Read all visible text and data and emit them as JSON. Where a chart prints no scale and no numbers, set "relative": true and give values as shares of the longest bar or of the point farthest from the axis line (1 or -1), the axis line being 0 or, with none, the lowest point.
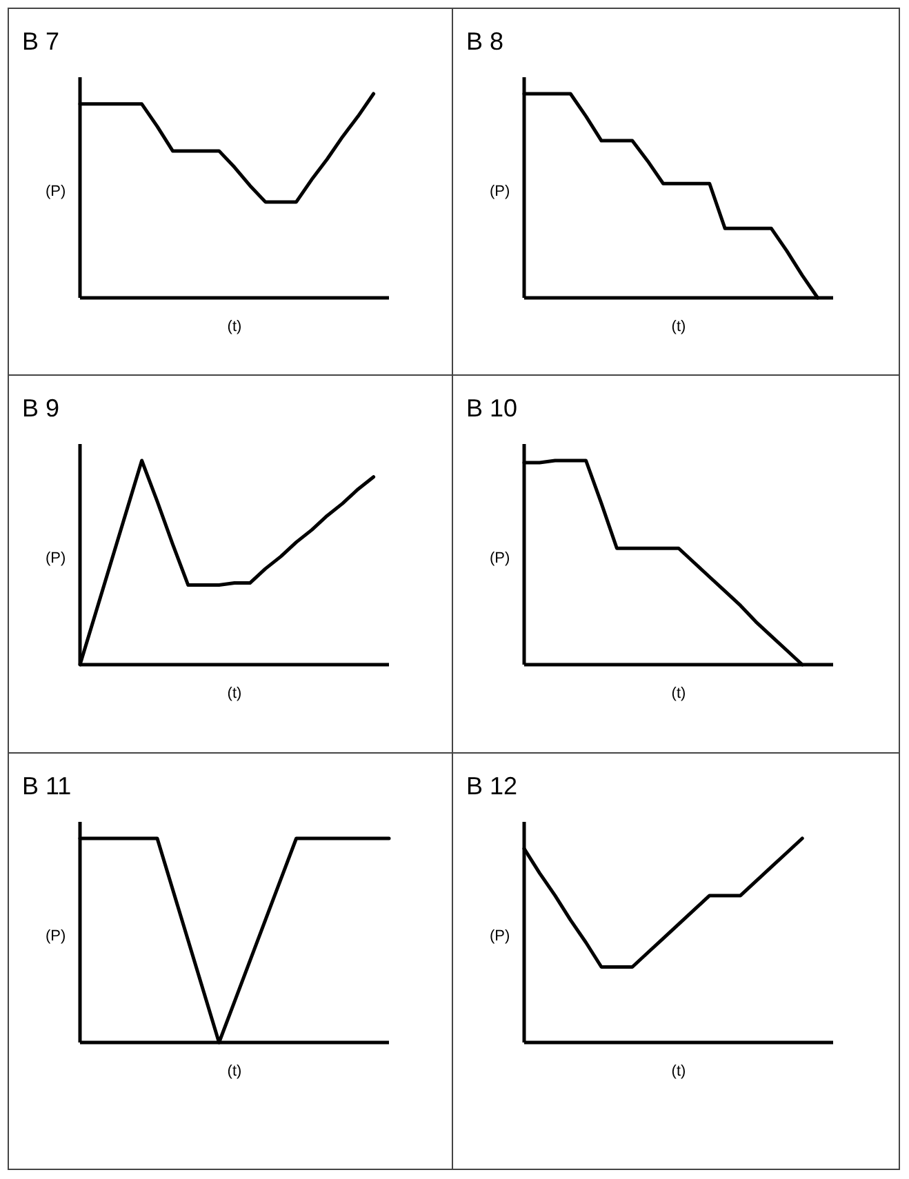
{
  "chart_data": [
    {
      "type": "line",
      "title": "B 7",
      "xlabel": "(t)",
      "ylabel": "(P)",
      "relative": true,
      "color": "#000000",
      "categories": [
        null,
        null,
        null,
        null,
        null,
        null,
        null,
        null,
        null,
        null,
        null,
        null,
        null,
        null,
        null,
        null,
        null,
        null,
        null,
        null,
        null
      ],
      "values": [
        0.95,
        0.95,
        0.95,
        0.95,
        0.95,
        0.84,
        0.72,
        0.72,
        0.72,
        0.72,
        0.64,
        0.55,
        0.47,
        0.47,
        0.47,
        0.58,
        0.68,
        0.79,
        0.89,
        1,
        null
      ]
    },
    {
      "type": "line",
      "title": "B 8",
      "xlabel": "(t)",
      "ylabel": "(P)",
      "relative": true,
      "color": "#000000",
      "categories": [
        null,
        null,
        null,
        null,
        null,
        null,
        null,
        null,
        null,
        null,
        null,
        null,
        null,
        null,
        null,
        null,
        null,
        null,
        null,
        null,
        null
      ],
      "values": [
        1,
        1,
        1,
        1,
        0.89,
        0.77,
        0.77,
        0.77,
        0.67,
        0.56,
        0.56,
        0.56,
        0.56,
        0.34,
        0.34,
        0.34,
        0.34,
        0.23,
        0.11,
        0,
        null
      ]
    },
    {
      "type": "line",
      "title": "B 9",
      "xlabel": "(t)",
      "ylabel": "(P)",
      "relative": true,
      "color": "#000000",
      "categories": [
        null,
        null,
        null,
        null,
        null,
        null,
        null,
        null,
        null,
        null,
        null,
        null,
        null,
        null,
        null,
        null,
        null,
        null,
        null,
        null,
        null
      ],
      "values": [
        0,
        0.25,
        0.5,
        0.75,
        1,
        0.8,
        0.59,
        0.39,
        0.39,
        0.39,
        0.4,
        0.4,
        0.47,
        0.53,
        0.6,
        0.66,
        0.73,
        0.79,
        0.86,
        0.92,
        null
      ]
    },
    {
      "type": "line",
      "title": "B 10",
      "xlabel": "(t)",
      "ylabel": "(P)",
      "relative": true,
      "color": "#000000",
      "categories": [
        null,
        null,
        null,
        null,
        null,
        null,
        null,
        null,
        null,
        null,
        null,
        null,
        null,
        null,
        null,
        null,
        null,
        null,
        null,
        null,
        null
      ],
      "values": [
        0.99,
        0.99,
        1,
        1,
        1,
        0.79,
        0.57,
        0.57,
        0.57,
        0.57,
        0.57,
        0.5,
        0.43,
        0.36,
        0.29,
        0.21,
        0.14,
        0.07,
        0,
        null,
        null
      ]
    },
    {
      "type": "line",
      "title": "B 11",
      "xlabel": "(t)",
      "ylabel": "(P)",
      "relative": true,
      "color": "#000000",
      "categories": [
        null,
        null,
        null,
        null,
        null,
        null,
        null,
        null,
        null,
        null,
        null,
        null,
        null,
        null,
        null,
        null,
        null,
        null,
        null,
        null,
        null
      ],
      "values": [
        1,
        1,
        1,
        1,
        1,
        1,
        0.75,
        0.5,
        0.25,
        0,
        0.2,
        0.4,
        0.6,
        0.8,
        1,
        1,
        1,
        1,
        1,
        1,
        1
      ]
    },
    {
      "type": "line",
      "title": "B 12",
      "xlabel": "(t)",
      "ylabel": "(P)",
      "relative": true,
      "color": "#000000",
      "categories": [
        null,
        null,
        null,
        null,
        null,
        null,
        null,
        null,
        null,
        null,
        null,
        null,
        null,
        null,
        null,
        null,
        null,
        null,
        null,
        null,
        null
      ],
      "values": [
        0.95,
        0.83,
        0.72,
        0.6,
        0.49,
        0.37,
        0.37,
        0.37,
        0.44,
        0.51,
        0.58,
        0.65,
        0.72,
        0.72,
        0.72,
        0.79,
        0.86,
        0.93,
        1,
        null,
        null
      ]
    }
  ]
}
